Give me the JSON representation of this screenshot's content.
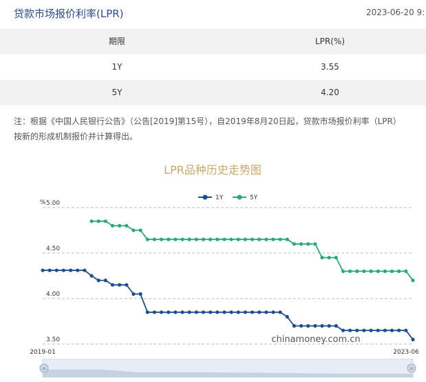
{
  "header": {
    "title": "贷款市场报价利率(LPR)",
    "timestamp": "2023-06-20 9:"
  },
  "table": {
    "headers": [
      "期限",
      "LPR(%)"
    ],
    "rows": [
      {
        "term": "1Y",
        "rate": "3.55"
      },
      {
        "term": "5Y",
        "rate": "4.20"
      }
    ]
  },
  "note": {
    "line1": "注：根据《中国人民银行公告》（公告[2019]第15号），自2019年8月20日起，贷款市场报价利率（LPR）",
    "line2": "按新的形成机制报价并计算得出。"
  },
  "chart_data": {
    "type": "line",
    "title": "LPR品种历史走势图",
    "ylabel": "%",
    "ylim": [
      3.5,
      5.0
    ],
    "yticks": [
      "5.00",
      "4.50",
      "4.00",
      "3.50"
    ],
    "x_start_label": "2019-01",
    "x_end_label": "2023-06",
    "watermark": "chinamoney.com.cn",
    "legend": [
      "1Y",
      "5Y"
    ],
    "colors": {
      "1Y": "#1f4e8c",
      "5Y": "#2aa876",
      "title": "#c9a86b",
      "grid": "#bbbbbb",
      "slider": "#d9e3ef"
    },
    "x": [
      "2019-01",
      "2019-02",
      "2019-03",
      "2019-04",
      "2019-05",
      "2019-06",
      "2019-07",
      "2019-08",
      "2019-09",
      "2019-10",
      "2019-11",
      "2019-12",
      "2020-01",
      "2020-02",
      "2020-03",
      "2020-04",
      "2020-05",
      "2020-06",
      "2020-07",
      "2020-08",
      "2020-09",
      "2020-10",
      "2020-11",
      "2020-12",
      "2021-01",
      "2021-02",
      "2021-03",
      "2021-04",
      "2021-05",
      "2021-06",
      "2021-07",
      "2021-08",
      "2021-09",
      "2021-10",
      "2021-11",
      "2021-12",
      "2022-01",
      "2022-02",
      "2022-03",
      "2022-04",
      "2022-05",
      "2022-06",
      "2022-07",
      "2022-08",
      "2022-09",
      "2022-10",
      "2022-11",
      "2022-12",
      "2023-01",
      "2023-02",
      "2023-03",
      "2023-04",
      "2023-05",
      "2023-06"
    ],
    "series": [
      {
        "name": "1Y",
        "values": [
          4.31,
          4.31,
          4.31,
          4.31,
          4.31,
          4.31,
          4.31,
          4.25,
          4.2,
          4.2,
          4.15,
          4.15,
          4.15,
          4.05,
          4.05,
          3.85,
          3.85,
          3.85,
          3.85,
          3.85,
          3.85,
          3.85,
          3.85,
          3.85,
          3.85,
          3.85,
          3.85,
          3.85,
          3.85,
          3.85,
          3.85,
          3.85,
          3.85,
          3.85,
          3.85,
          3.8,
          3.7,
          3.7,
          3.7,
          3.7,
          3.7,
          3.7,
          3.7,
          3.65,
          3.65,
          3.65,
          3.65,
          3.65,
          3.65,
          3.65,
          3.65,
          3.65,
          3.65,
          3.55
        ]
      },
      {
        "name": "5Y",
        "values": [
          null,
          null,
          null,
          null,
          null,
          null,
          null,
          4.85,
          4.85,
          4.85,
          4.8,
          4.8,
          4.8,
          4.75,
          4.75,
          4.65,
          4.65,
          4.65,
          4.65,
          4.65,
          4.65,
          4.65,
          4.65,
          4.65,
          4.65,
          4.65,
          4.65,
          4.65,
          4.65,
          4.65,
          4.65,
          4.65,
          4.65,
          4.65,
          4.65,
          4.65,
          4.6,
          4.6,
          4.6,
          4.6,
          4.45,
          4.45,
          4.45,
          4.3,
          4.3,
          4.3,
          4.3,
          4.3,
          4.3,
          4.3,
          4.3,
          4.3,
          4.3,
          4.2
        ]
      }
    ]
  }
}
